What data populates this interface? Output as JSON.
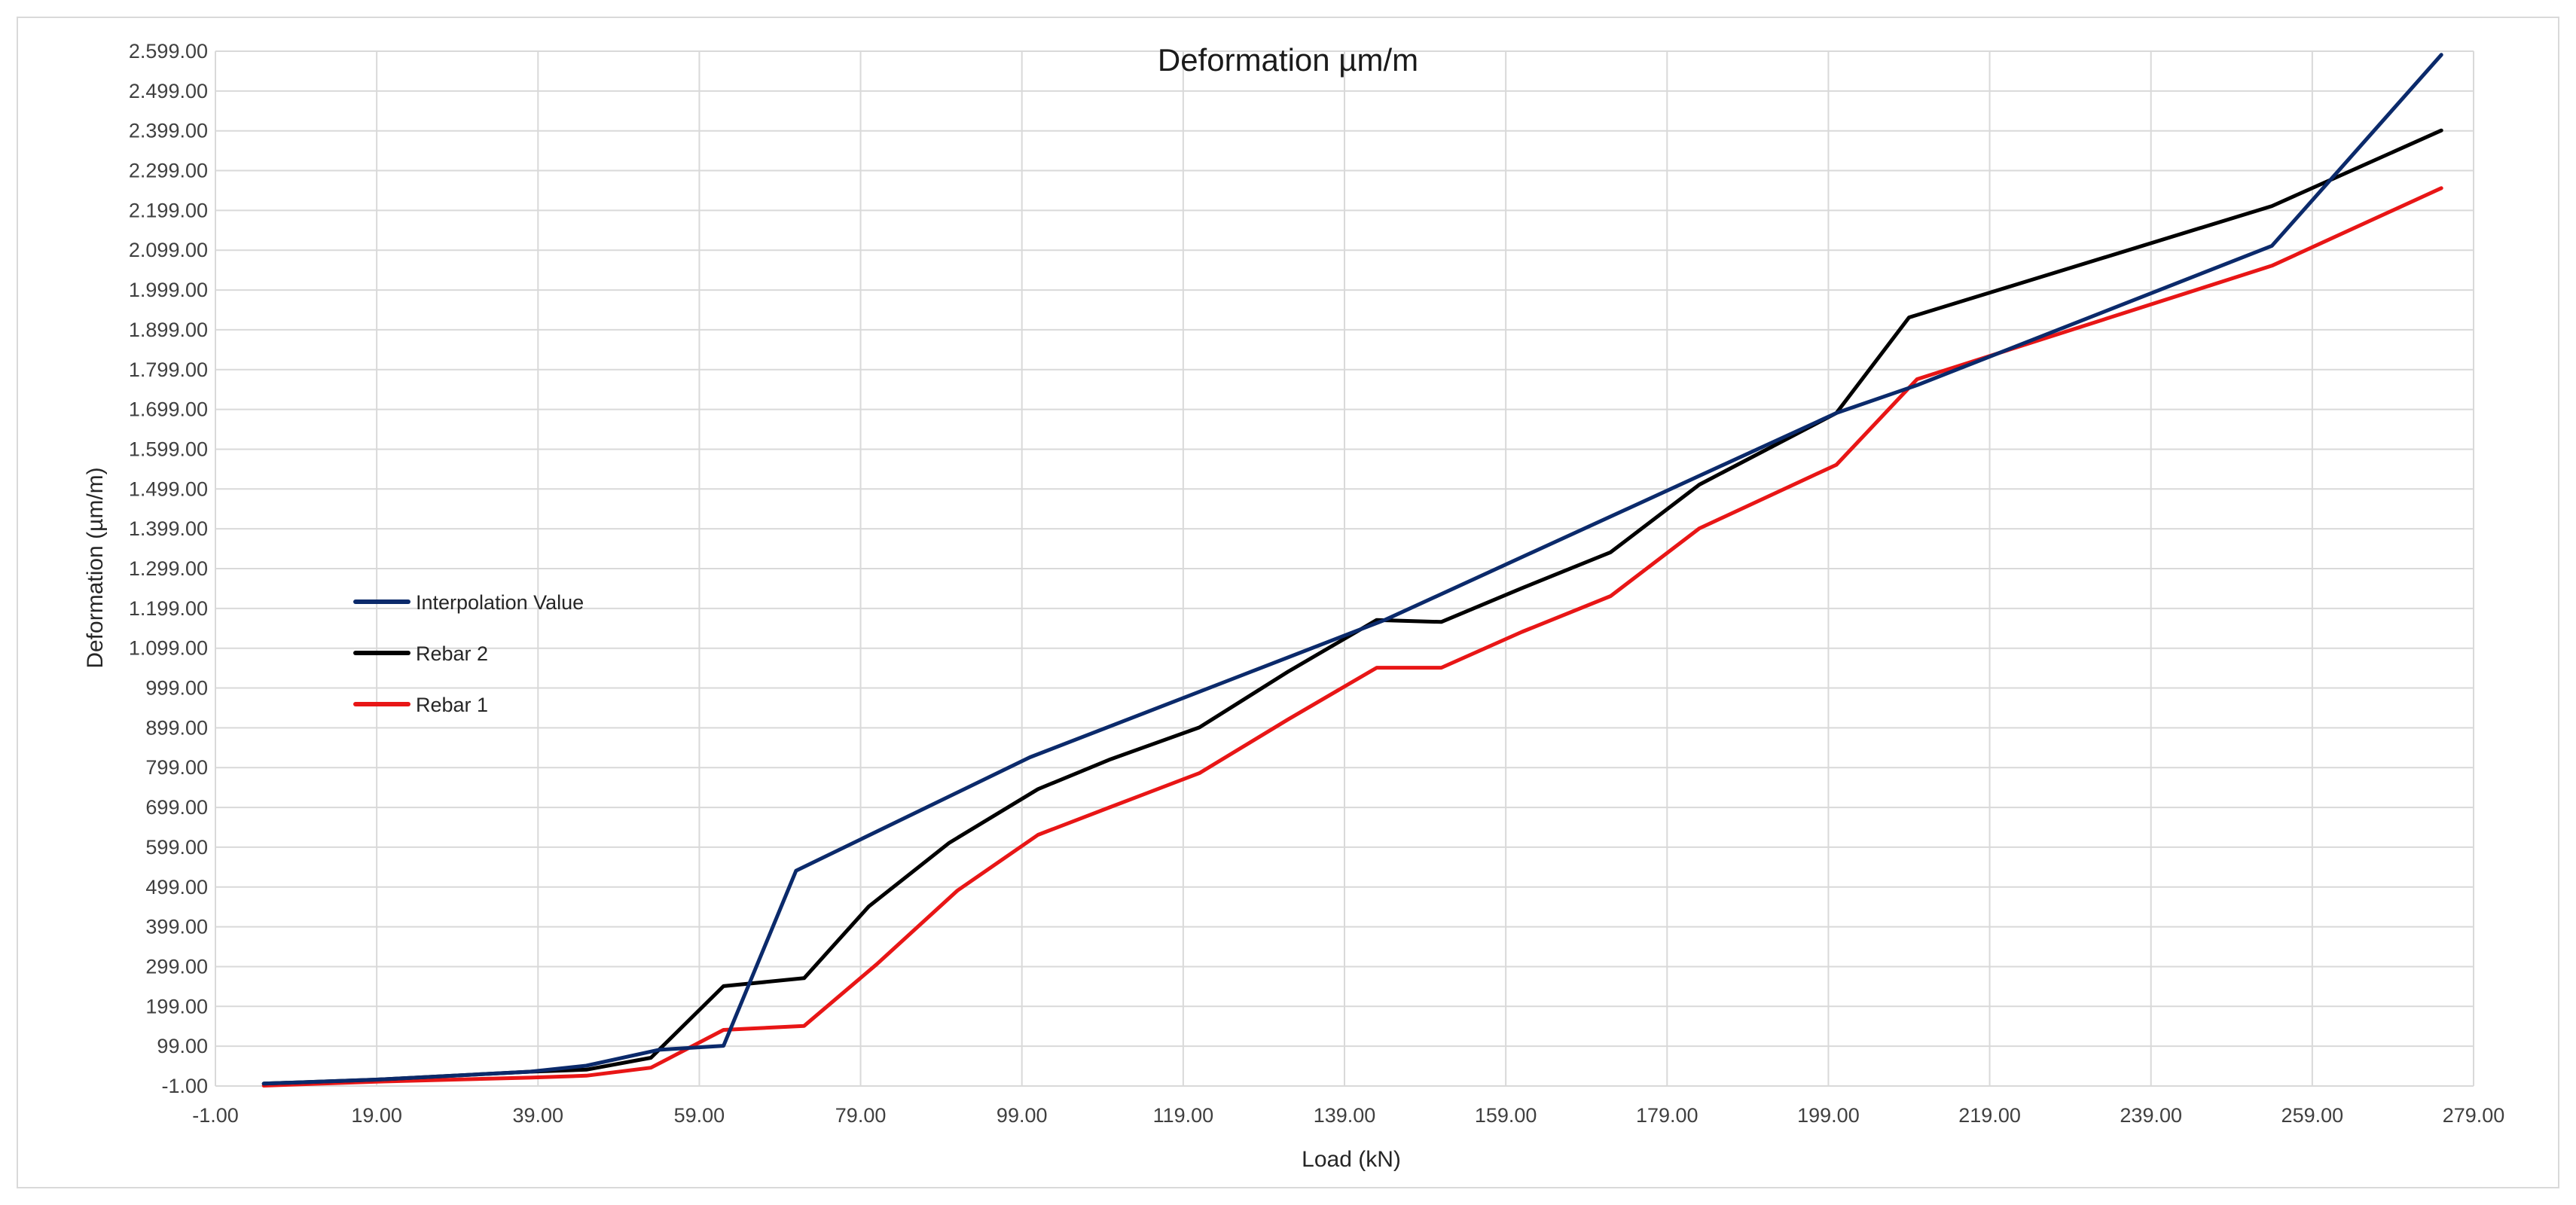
{
  "chart_data": {
    "type": "line",
    "title": "Deformation µm/m",
    "xlabel": "Load (kN)",
    "ylabel": "Deformation (µm/m)",
    "xlim": [
      -1.0,
      279.0
    ],
    "ylim": [
      -1.0,
      2599.0
    ],
    "x_ticks": [
      "-1.00",
      "19.00",
      "39.00",
      "59.00",
      "79.00",
      "99.00",
      "119.00",
      "139.00",
      "159.00",
      "179.00",
      "199.00",
      "219.00",
      "239.00",
      "259.00",
      "279.00"
    ],
    "y_ticks": [
      "-1.00",
      "99.00",
      "199.00",
      "299.00",
      "399.00",
      "499.00",
      "599.00",
      "699.00",
      "799.00",
      "899.00",
      "999.00",
      "1.099.00",
      "1.199.00",
      "1.299.00",
      "1.399.00",
      "1.499.00",
      "1.599.00",
      "1.699.00",
      "1.799.00",
      "1.899.00",
      "1.999.00",
      "2.099.00",
      "2.199.00",
      "2.299.00",
      "2.399.00",
      "2.499.00",
      "2.599.00"
    ],
    "grid": true,
    "legend_position": "left-middle",
    "series": [
      {
        "name": "Interpolation Value",
        "color": "#0b2a6b",
        "x": [
          5,
          19,
          38,
          45,
          54,
          62,
          71,
          100,
          144,
          200,
          210,
          254,
          275
        ],
        "y": [
          5,
          15,
          35,
          50,
          90,
          100,
          540,
          825,
          1170,
          1690,
          1760,
          2110,
          2590
        ]
      },
      {
        "name": "Rebar 2",
        "color": "#000000",
        "x": [
          5,
          19,
          38,
          45,
          53,
          62,
          72,
          80,
          90,
          101,
          110,
          121,
          132,
          143,
          151,
          161,
          172,
          183,
          200,
          209,
          254,
          275
        ],
        "y": [
          5,
          15,
          35,
          40,
          70,
          250,
          270,
          450,
          610,
          745,
          820,
          900,
          1040,
          1170,
          1165,
          1250,
          1340,
          1510,
          1690,
          1930,
          2210,
          2400
        ]
      },
      {
        "name": "Rebar 1",
        "color": "#e81616",
        "x": [
          5,
          19,
          38,
          45,
          53,
          62,
          72,
          81,
          91,
          101,
          110,
          121,
          132,
          143,
          151,
          161,
          172,
          183,
          200,
          210,
          254,
          275
        ],
        "y": [
          0,
          10,
          20,
          25,
          45,
          140,
          150,
          305,
          490,
          630,
          700,
          785,
          920,
          1050,
          1050,
          1140,
          1230,
          1400,
          1560,
          1775,
          2060,
          2255
        ]
      }
    ]
  }
}
